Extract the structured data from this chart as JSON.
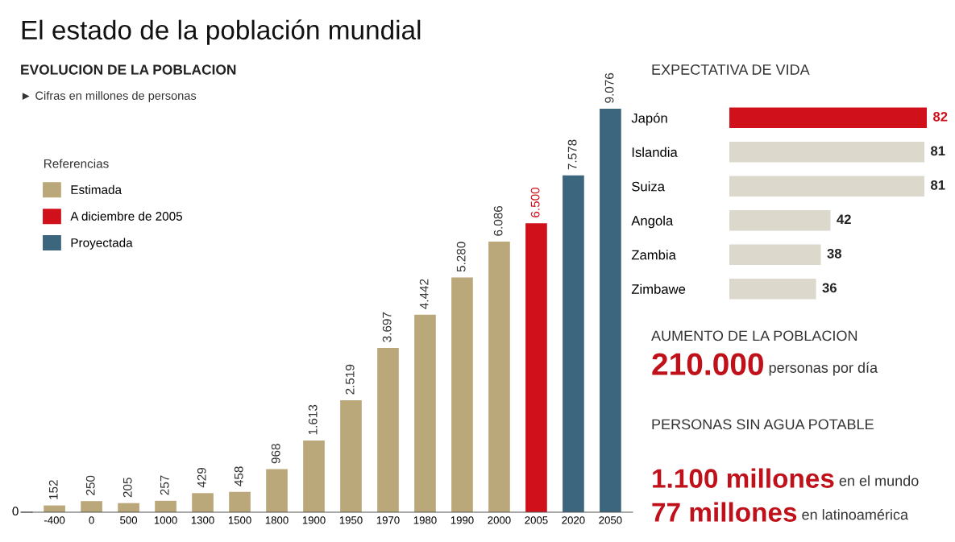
{
  "chart_data": [
    {
      "type": "bar",
      "title": "El estado de la población mundial",
      "subtitle": "EVOLUCION DE LA POBLACION",
      "annotations": [
        "► Cifras en millones de personas",
        "0"
      ],
      "legend_title": "Referencias",
      "legend": "top left",
      "categories": [
        "-400",
        "0",
        "500",
        "1000",
        "1300",
        "1500",
        "1800",
        "1900",
        "1950",
        "1970",
        "1980",
        "1990",
        "2000",
        "2005",
        "2020",
        "2050"
      ],
      "series": [
        {
          "name": "Estimada",
          "color": "#bba87a",
          "values": [
            152,
            250,
            205,
            257,
            429,
            458,
            968,
            1613,
            2519,
            3697,
            4442,
            5280,
            6086,
            null,
            null,
            null
          ],
          "value_labels": [
            "152",
            "250",
            "205",
            "257",
            "429",
            "458",
            "968",
            "1.613",
            "2.519",
            "3.697",
            "4.442",
            "5.280",
            "6.086",
            null,
            null,
            null
          ]
        },
        {
          "name": "A diciembre de 2005",
          "color": "#d0111b",
          "values": [
            null,
            null,
            null,
            null,
            null,
            null,
            null,
            null,
            null,
            null,
            null,
            null,
            null,
            6500,
            null,
            null
          ],
          "value_labels": [
            null,
            null,
            null,
            null,
            null,
            null,
            null,
            null,
            null,
            null,
            null,
            null,
            null,
            "6.500",
            null,
            null
          ]
        },
        {
          "name": "Proyectada",
          "color": "#3c657e",
          "values": [
            null,
            null,
            null,
            null,
            null,
            null,
            null,
            null,
            null,
            null,
            null,
            null,
            null,
            null,
            7578,
            9076
          ],
          "value_labels": [
            null,
            null,
            null,
            null,
            null,
            null,
            null,
            null,
            null,
            null,
            null,
            null,
            null,
            null,
            "7.578",
            "9.076"
          ]
        }
      ]
    },
    {
      "type": "bar",
      "orientation": "horizontal",
      "title": "EXPECTATIVA DE VIDA",
      "categories": [
        "Japón",
        "Islandia",
        "Suiza",
        "Angola",
        "Zambia",
        "Zimbawe"
      ],
      "values": [
        82,
        81,
        81,
        42,
        38,
        36
      ],
      "colors": [
        "#d0111b",
        "#dcd8cc",
        "#dcd8cc",
        "#dcd8cc",
        "#dcd8cc",
        "#dcd8cc"
      ],
      "data_labels": true,
      "xlim": [
        0,
        82
      ],
      "tick_labels": "y"
    },
    {
      "type": "other",
      "title": "AUMENTO DE LA POBLACION",
      "annotations": [
        "210.000",
        "personas por día"
      ]
    },
    {
      "type": "other",
      "title": "PERSONAS SIN AGUA POTABLE",
      "annotations": [
        "1.100 millones",
        "en el mundo",
        "77 millones",
        "en latinoamérica"
      ]
    }
  ]
}
